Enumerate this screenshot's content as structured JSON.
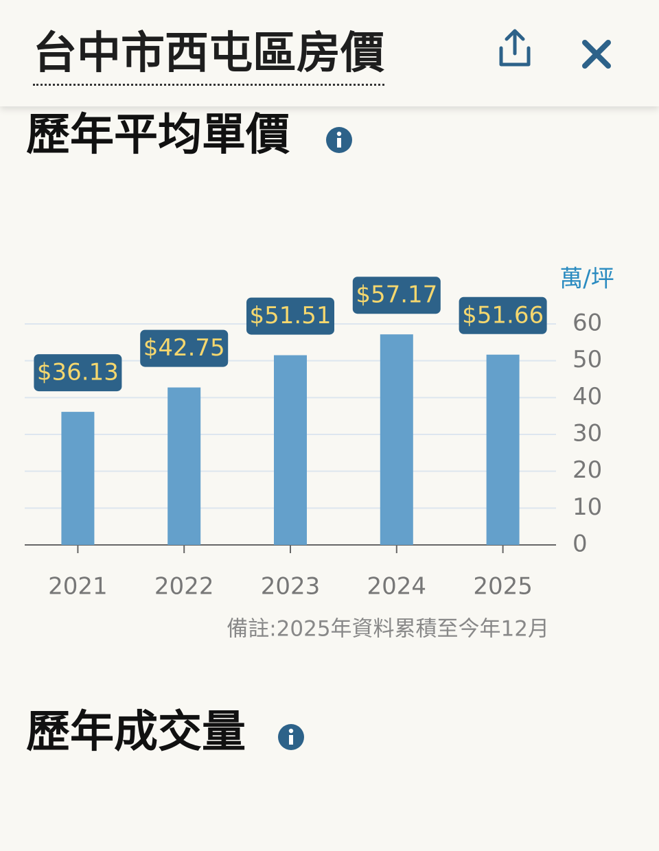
{
  "header": {
    "title": "台中市西屯區房價"
  },
  "sections": [
    {
      "title": "歷年平均單價"
    },
    {
      "title": "歷年成交量"
    }
  ],
  "chart_data": {
    "type": "bar",
    "categories": [
      "2021",
      "2022",
      "2023",
      "2024",
      "2025"
    ],
    "values": [
      36.13,
      42.75,
      51.51,
      57.17,
      51.66
    ],
    "value_labels": [
      "$36.13",
      "$42.75",
      "$51.51",
      "$57.17",
      "$51.66"
    ],
    "color": "#64a0cb",
    "y_label": "萬/坪",
    "ylim": [
      0,
      60
    ],
    "yticks": [
      0,
      10,
      20,
      30,
      40,
      50,
      60
    ],
    "grid": true,
    "annotation": "備註:2025年資料累積至今年12月"
  }
}
